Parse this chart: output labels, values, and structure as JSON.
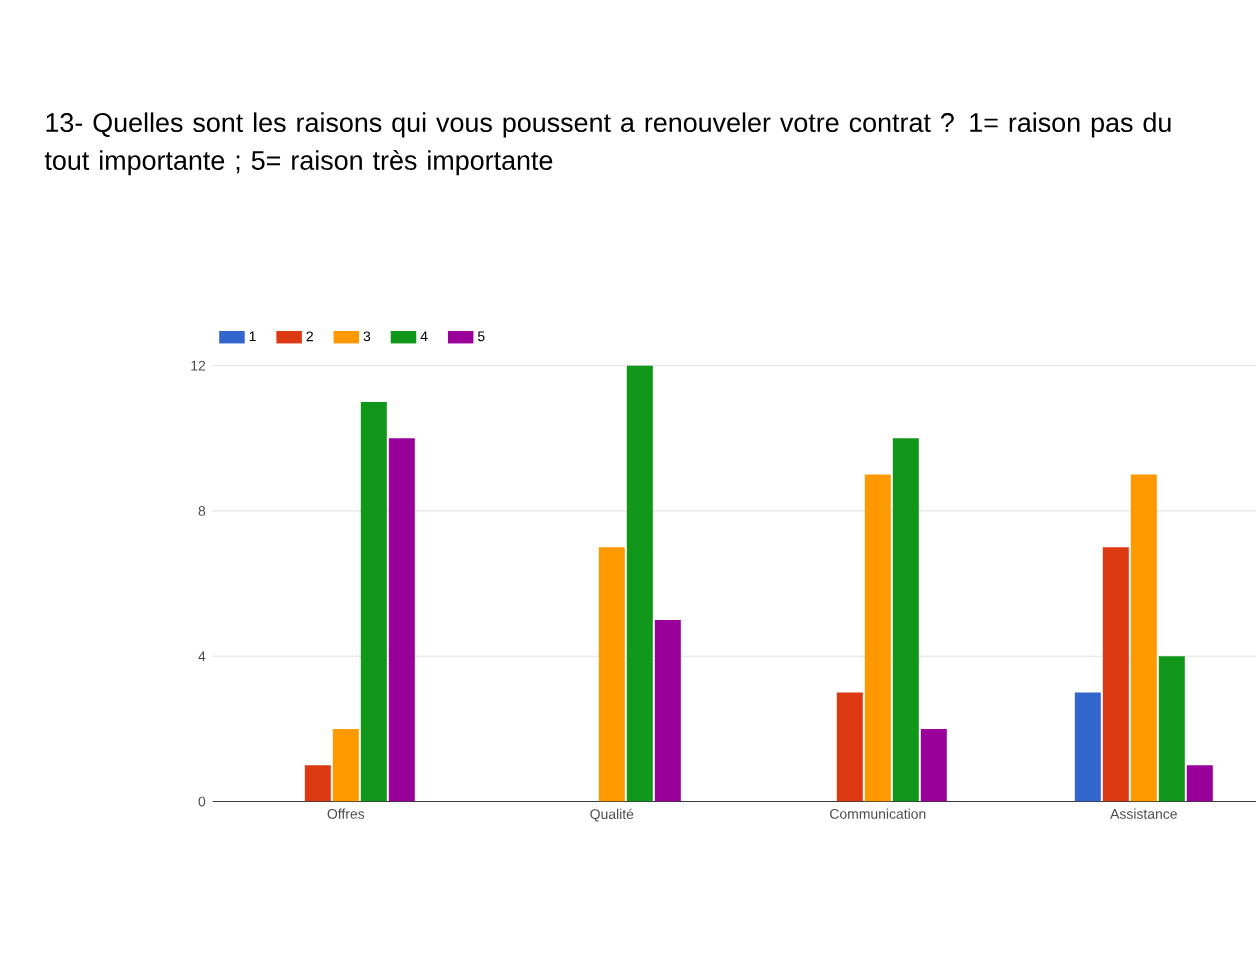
{
  "chart_data": {
    "type": "bar",
    "title": "13- Quelles sont les raisons qui vous poussent a renouveler votre contrat ? 1= raison pas du tout importante ; 5= raison très importante",
    "categories": [
      "Offres",
      "Qualité",
      "Communication",
      "Assistance"
    ],
    "series": [
      {
        "name": "1",
        "color": "#3366cc",
        "values": [
          0,
          0,
          0,
          3
        ]
      },
      {
        "name": "2",
        "color": "#dc3912",
        "values": [
          1,
          0,
          3,
          7
        ]
      },
      {
        "name": "3",
        "color": "#ff9900",
        "values": [
          2,
          7,
          9,
          9
        ]
      },
      {
        "name": "4",
        "color": "#109618",
        "values": [
          11,
          12,
          10,
          4
        ]
      },
      {
        "name": "5",
        "color": "#990099",
        "values": [
          10,
          5,
          2,
          1
        ]
      }
    ],
    "ylim": [
      0,
      12
    ],
    "yticks": [
      0,
      4,
      8,
      12
    ],
    "grid": "y",
    "legend": "top left"
  }
}
